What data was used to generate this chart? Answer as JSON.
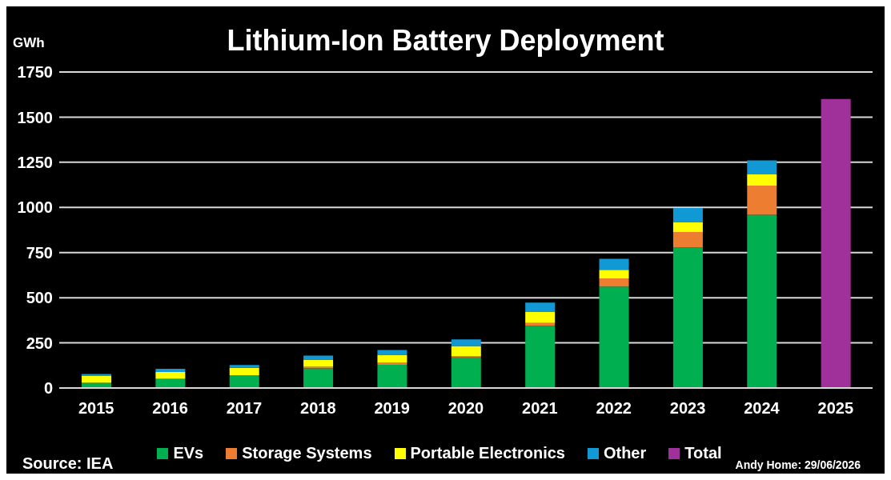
{
  "chart_data": {
    "type": "bar",
    "title": "Lithium-Ion Battery Deployment",
    "ylabel": "GWh",
    "categories": [
      "2015",
      "2016",
      "2017",
      "2018",
      "2019",
      "2020",
      "2021",
      "2022",
      "2023",
      "2024",
      "2025"
    ],
    "series": [
      {
        "name": "EVs",
        "color": "#00b050",
        "values": [
          29,
          50,
          71,
          109,
          129,
          170,
          344,
          562,
          777,
          959,
          null
        ]
      },
      {
        "name": "Storage Systems",
        "color": "#ed7d31",
        "values": [
          null,
          1,
          null,
          8,
          11,
          7,
          16,
          45,
          87,
          162,
          null
        ]
      },
      {
        "name": "Portable Electronics",
        "color": "#ffff00",
        "values": [
          37,
          38,
          41,
          40,
          44,
          56,
          63,
          48,
          55,
          62,
          null
        ]
      },
      {
        "name": "Other",
        "color": "#1199d5",
        "values": [
          12,
          17,
          15,
          22,
          26,
          36,
          50,
          61,
          78,
          77,
          null
        ]
      },
      {
        "name": "Total",
        "color": "#a0309a",
        "values": [
          null,
          null,
          null,
          null,
          null,
          null,
          null,
          null,
          null,
          null,
          1600
        ]
      }
    ],
    "stacked": true,
    "ylim": [
      0,
      1750
    ],
    "yticks": [
      0,
      250,
      500,
      750,
      1000,
      1250,
      1500,
      1750
    ],
    "grid": "y",
    "legend": "bottom",
    "annotations": [
      "Source: IEA",
      "Andy Home: 29/06/2026"
    ]
  }
}
